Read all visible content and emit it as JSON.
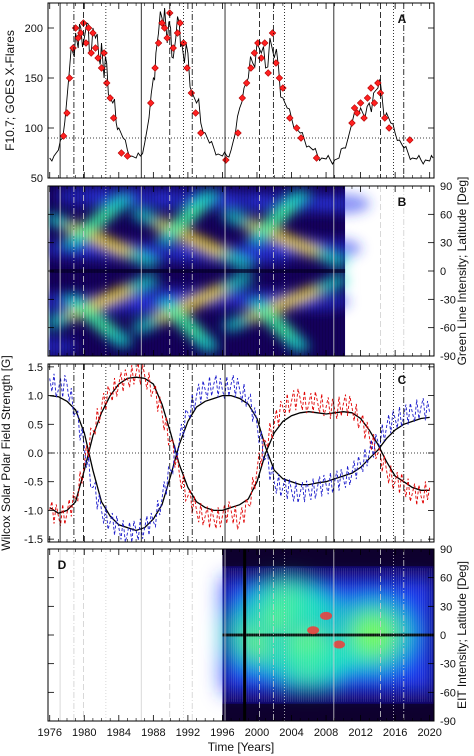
{
  "figure": {
    "x_axis_label": "Time [Years]",
    "x_ticks": [
      1976,
      1980,
      1984,
      1988,
      1992,
      1996,
      2000,
      2004,
      2008,
      2012,
      2016,
      2020
    ],
    "x_range": [
      1975.8,
      2020.5
    ],
    "cycle_lines": {
      "solid": [
        1977.2,
        1986.6,
        1996.3,
        2008.9
      ],
      "dashed": [
        1979.9,
        1989.9,
        2000.3,
        2014.3
      ],
      "dotted": [
        1982.5,
        1991.5,
        2003.2,
        2015.8
      ],
      "dashdot": [
        1978.8,
        1992.5,
        2001.9,
        2017.0
      ]
    },
    "colors": {
      "red": "#e00000",
      "blue": "#1a1acc",
      "black": "#000000"
    }
  },
  "chart_data": [
    {
      "panel_label": "A",
      "type": "line",
      "ylabel": "F10.7; GOES X-Flares",
      "ylim": [
        50,
        225
      ],
      "y_ticks": [
        50,
        100,
        150,
        200
      ],
      "reference_line_y": 90,
      "series": [
        {
          "name": "F10.7",
          "x": [
            1976.0,
            1976.5,
            1977.0,
            1977.5,
            1978.0,
            1978.3,
            1978.7,
            1979.0,
            1979.3,
            1979.6,
            1980.0,
            1980.3,
            1980.6,
            1981.0,
            1981.3,
            1981.7,
            1982.0,
            1982.3,
            1982.6,
            1983.0,
            1983.3,
            1983.7,
            1984.0,
            1984.5,
            1985.0,
            1985.5,
            1986.0,
            1986.5,
            1987.0,
            1987.5,
            1988.0,
            1988.3,
            1988.6,
            1989.0,
            1989.3,
            1989.6,
            1990.0,
            1990.3,
            1990.6,
            1991.0,
            1991.3,
            1991.6,
            1992.0,
            1992.5,
            1993.0,
            1993.5,
            1994.0,
            1994.5,
            1995.0,
            1995.5,
            1996.0,
            1996.5,
            1997.0,
            1997.5,
            1998.0,
            1998.5,
            1999.0,
            1999.5,
            2000.0,
            2000.5,
            2001.0,
            2001.5,
            2002.0,
            2002.5,
            2003.0,
            2003.5,
            2004.0,
            2004.5,
            2005.0,
            2005.5,
            2006.0,
            2006.5,
            2007.0,
            2007.5,
            2008.0,
            2008.5,
            2009.0,
            2009.5,
            2010.0,
            2010.5,
            2011.0,
            2011.5,
            2012.0,
            2012.5,
            2013.0,
            2013.5,
            2014.0,
            2014.5,
            2015.0,
            2015.5,
            2016.0,
            2016.5,
            2017.0,
            2017.5,
            2018.0,
            2018.5,
            2019.0,
            2019.5,
            2020.0,
            2020.4
          ],
          "values": [
            70,
            72,
            78,
            90,
            130,
            160,
            175,
            195,
            180,
            200,
            190,
            205,
            175,
            200,
            190,
            170,
            185,
            150,
            165,
            130,
            125,
            105,
            100,
            90,
            78,
            72,
            70,
            72,
            85,
            110,
            150,
            175,
            195,
            210,
            220,
            185,
            200,
            170,
            190,
            205,
            185,
            165,
            175,
            135,
            125,
            105,
            95,
            85,
            80,
            74,
            72,
            72,
            78,
            95,
            120,
            140,
            150,
            165,
            185,
            175,
            160,
            190,
            170,
            160,
            130,
            120,
            110,
            100,
            95,
            88,
            82,
            78,
            73,
            70,
            69,
            68,
            68,
            70,
            80,
            88,
            105,
            115,
            120,
            110,
            125,
            135,
            140,
            130,
            115,
            105,
            95,
            88,
            80,
            75,
            70,
            69,
            68,
            68,
            67,
            70
          ]
        },
        {
          "name": "GOES X-Flares",
          "marker": "diamond",
          "x": [
            1977.6,
            1978.0,
            1978.3,
            1978.7,
            1979.0,
            1979.3,
            1979.6,
            1979.9,
            1980.2,
            1980.5,
            1980.8,
            1981.0,
            1981.3,
            1981.6,
            1982.0,
            1982.3,
            1982.6,
            1983.0,
            1983.4,
            1984.3,
            1985.0,
            1987.7,
            1988.2,
            1988.6,
            1989.0,
            1989.3,
            1989.6,
            1989.9,
            1990.3,
            1990.8,
            1991.1,
            1991.5,
            1991.9,
            1992.4,
            1992.9,
            1993.5,
            1996.4,
            1997.8,
            1998.3,
            1998.8,
            1999.3,
            1999.7,
            2000.1,
            2000.5,
            2000.9,
            2001.3,
            2001.8,
            2002.2,
            2002.6,
            2003.0,
            2003.8,
            2004.6,
            2005.1,
            2006.9,
            2011.0,
            2011.3,
            2011.6,
            2012.0,
            2012.4,
            2012.8,
            2013.2,
            2013.6,
            2014.0,
            2014.3,
            2014.8,
            2015.3,
            2017.7
          ],
          "values": [
            92,
            115,
            150,
            180,
            200,
            190,
            195,
            205,
            185,
            200,
            175,
            195,
            180,
            170,
            160,
            175,
            145,
            130,
            110,
            75,
            72,
            125,
            160,
            185,
            205,
            200,
            190,
            215,
            180,
            195,
            205,
            185,
            160,
            135,
            115,
            95,
            68,
            95,
            130,
            145,
            160,
            175,
            185,
            170,
            185,
            155,
            195,
            165,
            150,
            140,
            110,
            100,
            90,
            70,
            105,
            120,
            115,
            125,
            110,
            130,
            140,
            125,
            145,
            135,
            110,
            100,
            88
          ]
        }
      ]
    },
    {
      "panel_label": "B",
      "type": "heatmap",
      "ylabel": "Green Line Intensity; Latitude [Deg]",
      "ylim": [
        -90,
        90
      ],
      "y_ticks": [
        -90,
        -60,
        -30,
        0,
        30,
        60,
        90
      ],
      "x_span": [
        1976.0,
        2010.2
      ],
      "bands": [
        {
          "x": [
            1976.5,
            1987.5
          ],
          "lat": [
            55,
            10
          ]
        },
        {
          "x": [
            1976.5,
            1987.5
          ],
          "lat": [
            -55,
            -10
          ]
        },
        {
          "x": [
            1986.5,
            1998.5
          ],
          "lat": [
            60,
            8
          ]
        },
        {
          "x": [
            1986.5,
            1998.5
          ],
          "lat": [
            -60,
            -8
          ]
        },
        {
          "x": [
            1997.0,
            2009.5
          ],
          "lat": [
            58,
            10
          ]
        },
        {
          "x": [
            1997.0,
            2009.5
          ],
          "lat": [
            -58,
            -10
          ]
        },
        {
          "x": [
            1978.5,
            1984.5
          ],
          "lat": [
            30,
            75
          ]
        },
        {
          "x": [
            1978.5,
            1984.5
          ],
          "lat": [
            -30,
            -75
          ]
        },
        {
          "x": [
            1989.5,
            1994.5
          ],
          "lat": [
            35,
            80
          ]
        },
        {
          "x": [
            1989.5,
            1994.5
          ],
          "lat": [
            -35,
            -80
          ]
        },
        {
          "x": [
            2000.0,
            2005.0
          ],
          "lat": [
            35,
            80
          ]
        },
        {
          "x": [
            2000.0,
            2005.0
          ],
          "lat": [
            -35,
            -80
          ]
        }
      ]
    },
    {
      "panel_label": "C",
      "type": "line",
      "ylabel": "Wilcox Solar Polar Field Strength [G]",
      "ylim": [
        -1.55,
        1.55
      ],
      "y_ticks": [
        -1.5,
        -1.0,
        -0.5,
        0.0,
        0.5,
        1.0,
        1.5
      ],
      "series": [
        {
          "name": "",
          "color": "#000000",
          "style": "solid",
          "x": [
            1976.0,
            1977.0,
            1978.0,
            1979.0,
            1980.0,
            1981.0,
            1982.0,
            1983.0,
            1984.0,
            1985.0,
            1986.0,
            1987.0,
            1988.0,
            1989.0,
            1990.0,
            1991.0,
            1992.0,
            1993.0,
            1994.0,
            1995.0,
            1996.0,
            1997.0,
            1998.0,
            1999.0,
            2000.0,
            2001.0,
            2002.0,
            2003.0,
            2004.0,
            2005.0,
            2006.0,
            2007.0,
            2008.0,
            2009.0,
            2010.0,
            2011.0,
            2012.0,
            2013.0,
            2014.0,
            2015.0,
            2016.0,
            2017.0,
            2018.0,
            2019.0,
            2020.0
          ],
          "values": [
            1.0,
            0.98,
            0.9,
            0.75,
            0.35,
            -0.3,
            -0.85,
            -1.1,
            -1.25,
            -1.3,
            -1.35,
            -1.3,
            -1.15,
            -0.9,
            -0.4,
            0.15,
            0.55,
            0.8,
            0.9,
            0.95,
            1.0,
            1.0,
            0.95,
            0.85,
            0.6,
            0.1,
            -0.3,
            -0.45,
            -0.5,
            -0.55,
            -0.55,
            -0.52,
            -0.5,
            -0.45,
            -0.4,
            -0.35,
            -0.25,
            -0.1,
            0.05,
            0.25,
            0.4,
            0.5,
            0.55,
            0.6,
            0.62
          ]
        },
        {
          "name": "",
          "color": "#000000",
          "style": "solid",
          "x": [
            1976.0,
            1977.0,
            1978.0,
            1979.0,
            1980.0,
            1981.0,
            1982.0,
            1983.0,
            1984.0,
            1985.0,
            1986.0,
            1987.0,
            1988.0,
            1989.0,
            1990.0,
            1991.0,
            1992.0,
            1993.0,
            1994.0,
            1995.0,
            1996.0,
            1997.0,
            1998.0,
            1999.0,
            2000.0,
            2001.0,
            2002.0,
            2003.0,
            2004.0,
            2005.0,
            2006.0,
            2007.0,
            2008.0,
            2009.0,
            2010.0,
            2011.0,
            2012.0,
            2013.0,
            2014.0,
            2015.0,
            2016.0,
            2017.0,
            2018.0,
            2019.0,
            2020.0
          ],
          "values": [
            -0.95,
            -1.05,
            -1.0,
            -0.85,
            -0.3,
            0.3,
            0.7,
            1.0,
            1.2,
            1.3,
            1.32,
            1.3,
            1.2,
            0.85,
            0.35,
            -0.2,
            -0.6,
            -0.85,
            -0.95,
            -1.0,
            -1.0,
            -0.95,
            -0.9,
            -0.8,
            -0.5,
            0.0,
            0.35,
            0.55,
            0.65,
            0.7,
            0.72,
            0.7,
            0.68,
            0.7,
            0.72,
            0.7,
            0.6,
            0.4,
            0.15,
            -0.15,
            -0.4,
            -0.5,
            -0.6,
            -0.65,
            -0.65
          ]
        },
        {
          "name": "",
          "color": "#e00000",
          "style": "dashed",
          "x": [
            1976.0,
            1977.0,
            1978.0,
            1979.0,
            1980.0,
            1981.0,
            1982.0,
            1983.0,
            1984.0,
            1985.0,
            1986.0,
            1987.0,
            1988.0,
            1989.0,
            1990.0,
            1991.0,
            1992.0,
            1993.0,
            1994.0,
            1995.0,
            1996.0,
            1997.0,
            1998.0,
            1999.0,
            2000.0,
            2001.0,
            2002.0,
            2003.0,
            2004.0,
            2005.0,
            2006.0,
            2007.0,
            2008.0,
            2009.0,
            2010.0,
            2011.0,
            2012.0,
            2013.0,
            2014.0,
            2015.0,
            2016.0,
            2017.0,
            2018.0,
            2019.0,
            2020.0
          ],
          "values": [
            -1.0,
            -1.1,
            -1.05,
            -0.8,
            -0.2,
            0.4,
            0.8,
            1.05,
            1.2,
            1.3,
            1.4,
            1.35,
            1.1,
            0.7,
            0.2,
            -0.35,
            -0.75,
            -1.0,
            -1.1,
            -1.15,
            -1.1,
            -1.0,
            -1.2,
            -0.9,
            -0.3,
            0.2,
            0.5,
            0.8,
            0.9,
            0.95,
            0.85,
            0.9,
            0.8,
            0.75,
            0.85,
            0.8,
            0.55,
            0.3,
            0.0,
            -0.3,
            -0.5,
            -0.55,
            -0.7,
            -0.75,
            -0.6
          ]
        },
        {
          "name": "",
          "color": "#1a1acc",
          "style": "dashed",
          "x": [
            1976.0,
            1977.0,
            1978.0,
            1979.0,
            1980.0,
            1981.0,
            1982.0,
            1983.0,
            1984.0,
            1985.0,
            1986.0,
            1987.0,
            1988.0,
            1989.0,
            1990.0,
            1991.0,
            1992.0,
            1993.0,
            1994.0,
            1995.0,
            1996.0,
            1997.0,
            1998.0,
            1999.0,
            2000.0,
            2001.0,
            2002.0,
            2003.0,
            2004.0,
            2005.0,
            2006.0,
            2007.0,
            2008.0,
            2009.0,
            2010.0,
            2011.0,
            2012.0,
            2013.0,
            2014.0,
            2015.0,
            2016.0,
            2017.0,
            2018.0,
            2019.0,
            2020.0
          ],
          "values": [
            1.3,
            1.1,
            1.2,
            0.7,
            0.1,
            -0.6,
            -1.0,
            -1.2,
            -1.3,
            -1.4,
            -1.35,
            -1.3,
            -1.2,
            -0.8,
            -0.3,
            0.2,
            0.7,
            1.0,
            1.1,
            1.2,
            1.1,
            1.2,
            1.1,
            0.95,
            0.5,
            -0.1,
            -0.5,
            -0.6,
            -0.65,
            -0.7,
            -0.65,
            -0.6,
            -0.55,
            -0.5,
            -0.45,
            -0.35,
            -0.2,
            0.0,
            0.2,
            0.45,
            0.6,
            0.65,
            0.7,
            0.8,
            0.7
          ]
        }
      ]
    },
    {
      "panel_label": "D",
      "type": "heatmap",
      "ylabel": "EIT Intensity; Latitude [Deg]",
      "ylim": [
        -90,
        90
      ],
      "y_ticks": [
        -90,
        -60,
        -30,
        0,
        30,
        60,
        90
      ],
      "x_span": [
        1996.0,
        2020.5
      ],
      "peaks": [
        {
          "x": 2001.0,
          "lat": 0
        },
        {
          "x": 2013.5,
          "lat": 0
        },
        {
          "x": 2003.5,
          "lat": 25
        },
        {
          "x": 2006.0,
          "lat": -20
        }
      ]
    }
  ]
}
